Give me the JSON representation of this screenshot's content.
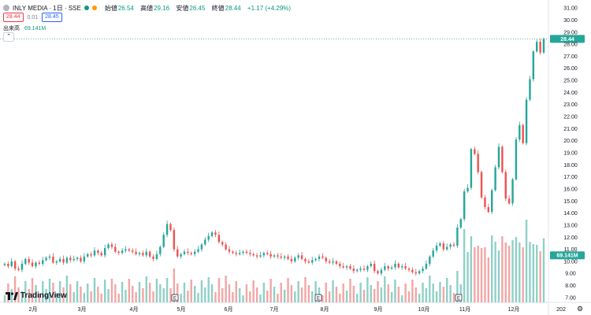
{
  "header": {
    "symbol": "INLY MEDIA · 1日 · SSE",
    "ohlc": [
      {
        "k": "始値",
        "v": "26.54"
      },
      {
        "k": "高値",
        "v": "29.16"
      },
      {
        "k": "安値",
        "v": "26.45"
      },
      {
        "k": "終値",
        "v": "28.44"
      }
    ],
    "change": "+1.17 (+4.29%)",
    "sell_price": "28.44",
    "spread": "0.01",
    "buy_price": "28.45",
    "volume_label": "出来高",
    "volume_value": "69.141M",
    "dot_colors": [
      "#089981",
      "#ff9800"
    ]
  },
  "watermark": "TradingView",
  "colors": {
    "up": "#26a69a",
    "down": "#ef5350",
    "up_vol": "#8fd0c7",
    "down_vol": "#f2a7a5",
    "accent": "#2962ff"
  },
  "chart_data": {
    "type": "candlestick",
    "price_axis": {
      "ticks": [
        "7.00",
        "8.00",
        "9.00",
        "10.00",
        "11.00",
        "12.00",
        "13.00",
        "14.00",
        "15.00",
        "16.00",
        "17.00",
        "18.00",
        "19.00",
        "20.00",
        "21.00",
        "22.00",
        "23.00",
        "24.00",
        "25.00",
        "26.00",
        "27.00",
        "28.00",
        "29.00",
        "30.00",
        "31.00"
      ],
      "range": [
        6.6,
        31.4
      ]
    },
    "time_axis": {
      "labels": [
        "2月",
        "3月",
        "4月",
        "5月",
        "6月",
        "7月",
        "8月",
        "9月",
        "10月",
        "11月",
        "12月",
        "202"
      ]
    },
    "last_price": {
      "label": "28.44",
      "value": 28.44
    },
    "volume_badge": {
      "label": "69.141M",
      "value": 10.5
    },
    "events": [
      {
        "type": "marker",
        "text": "E",
        "month": "5月"
      },
      {
        "type": "marker",
        "text": "E",
        "month": "8月"
      },
      {
        "type": "marker",
        "text": "E",
        "month": "11月"
      }
    ],
    "series_close_path": [
      9.8,
      9.6,
      10.0,
      9.4,
      9.3,
      9.8,
      10.2,
      9.9,
      9.6,
      9.9,
      9.8,
      10.1,
      10.3,
      10.4,
      9.9,
      10.0,
      10.2,
      9.9,
      10.3,
      10.1,
      10.2,
      10.3,
      10.0,
      10.4,
      10.6,
      10.5,
      10.9,
      10.7,
      10.5,
      11.1,
      11.4,
      11.2,
      10.8,
      10.7,
      10.9,
      11.0,
      10.9,
      10.8,
      10.6,
      10.7,
      10.5,
      10.8,
      10.4,
      10.2,
      10.6,
      11.2,
      12.2,
      13.1,
      12.6,
      11.0,
      10.4,
      10.6,
      10.8,
      10.7,
      10.6,
      10.8,
      11.0,
      11.4,
      11.8,
      12.1,
      12.4,
      12.2,
      11.6,
      11.4,
      11.0,
      10.8,
      10.7,
      10.6,
      10.7,
      10.8,
      10.7,
      10.6,
      10.5,
      10.4,
      10.5,
      10.7,
      10.6,
      10.4,
      10.5,
      10.4,
      10.3,
      10.4,
      10.2,
      10.0,
      10.3,
      10.5,
      10.2,
      10.0,
      9.9,
      10.1,
      10.2,
      10.4,
      10.3,
      10.0,
      9.9,
      10.0,
      9.8,
      9.6,
      9.5,
      9.6,
      9.4,
      9.2,
      9.3,
      9.4,
      9.3,
      9.6,
      9.8,
      9.2,
      9.0,
      9.3,
      9.6,
      9.4,
      9.5,
      9.8,
      9.5,
      9.6,
      9.4,
      9.3,
      9.1,
      9.0,
      9.2,
      9.4,
      9.8,
      10.4,
      10.9,
      11.3,
      11.5,
      11.0,
      11.2,
      11.4,
      11.3,
      12.8,
      13.5,
      15.8,
      16.1,
      19.3,
      18.9,
      17.4,
      15.3,
      14.5,
      14.1,
      15.9,
      17.8,
      19.5,
      17.4,
      15.2,
      14.8,
      16.8,
      20.1,
      21.3,
      19.8,
      23.4,
      25.1,
      27.4,
      28.2,
      27.3,
      28.44
    ]
  }
}
